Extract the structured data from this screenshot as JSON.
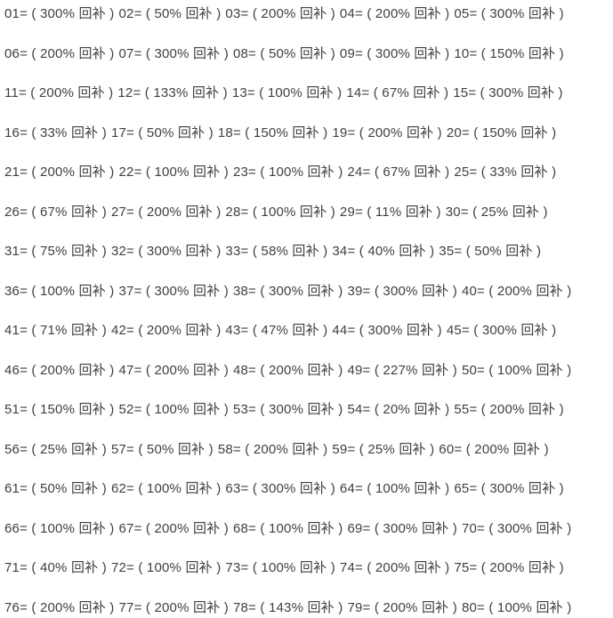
{
  "page": {
    "background": "#ffffff",
    "text_color": "#404040",
    "term": "回补",
    "entries_per_row": 5
  },
  "entries": [
    {
      "id": "01",
      "percent": "300%",
      "text": "01= ( 300% 回补 )"
    },
    {
      "id": "02",
      "percent": "50%",
      "text": "02= ( 50% 回补 )"
    },
    {
      "id": "03",
      "percent": "200%",
      "text": "03= ( 200% 回补 )"
    },
    {
      "id": "04",
      "percent": "200%",
      "text": "04= ( 200% 回补 )"
    },
    {
      "id": "05",
      "percent": "300%",
      "text": "05= ( 300% 回补 )"
    },
    {
      "id": "06",
      "percent": "200%",
      "text": "06= ( 200% 回补 )"
    },
    {
      "id": "07",
      "percent": "300%",
      "text": "07= ( 300% 回补 )"
    },
    {
      "id": "08",
      "percent": "50%",
      "text": "08= ( 50% 回补 )"
    },
    {
      "id": "09",
      "percent": "300%",
      "text": "09= ( 300% 回补 )"
    },
    {
      "id": "10",
      "percent": "150%",
      "text": "10= ( 150% 回补 )"
    },
    {
      "id": "11",
      "percent": "200%",
      "text": "11= ( 200% 回补 )"
    },
    {
      "id": "12",
      "percent": "133%",
      "text": "12= ( 133% 回补 )"
    },
    {
      "id": "13",
      "percent": "100%",
      "text": "13= ( 100% 回补 )"
    },
    {
      "id": "14",
      "percent": "67%",
      "text": "14= ( 67% 回补 )"
    },
    {
      "id": "15",
      "percent": "300%",
      "text": "15= ( 300% 回补 )"
    },
    {
      "id": "16",
      "percent": "33%",
      "text": "16= ( 33% 回补 )"
    },
    {
      "id": "17",
      "percent": "50%",
      "text": "17= ( 50% 回补 )"
    },
    {
      "id": "18",
      "percent": "150%",
      "text": "18= ( 150% 回补 )"
    },
    {
      "id": "19",
      "percent": "200%",
      "text": "19= ( 200% 回补 )"
    },
    {
      "id": "20",
      "percent": "150%",
      "text": "20= ( 150% 回补 )"
    },
    {
      "id": "21",
      "percent": "200%",
      "text": "21= ( 200% 回补 )"
    },
    {
      "id": "22",
      "percent": "100%",
      "text": "22= ( 100% 回补 )"
    },
    {
      "id": "23",
      "percent": "100%",
      "text": "23= ( 100% 回补 )"
    },
    {
      "id": "24",
      "percent": "67%",
      "text": "24= ( 67% 回补 )"
    },
    {
      "id": "25",
      "percent": "33%",
      "text": "25= ( 33% 回补 )"
    },
    {
      "id": "26",
      "percent": "67%",
      "text": "26= ( 67% 回补 )"
    },
    {
      "id": "27",
      "percent": "200%",
      "text": "27= ( 200% 回补 )"
    },
    {
      "id": "28",
      "percent": "100%",
      "text": "28= ( 100% 回补 )"
    },
    {
      "id": "29",
      "percent": "11%",
      "text": "29= ( 11% 回补 )"
    },
    {
      "id": "30",
      "percent": "25%",
      "text": "30= ( 25% 回补 )"
    },
    {
      "id": "31",
      "percent": "75%",
      "text": "31= ( 75% 回补 )"
    },
    {
      "id": "32",
      "percent": "300%",
      "text": "32= ( 300% 回补 )"
    },
    {
      "id": "33",
      "percent": "58%",
      "text": "33= ( 58% 回补 )"
    },
    {
      "id": "34",
      "percent": "40%",
      "text": "34= ( 40% 回补 )"
    },
    {
      "id": "35",
      "percent": "50%",
      "text": "35= ( 50% 回补 )"
    },
    {
      "id": "36",
      "percent": "100%",
      "text": "36= ( 100% 回补 )"
    },
    {
      "id": "37",
      "percent": "300%",
      "text": "37= ( 300% 回补 )"
    },
    {
      "id": "38",
      "percent": "300%",
      "text": "38= ( 300% 回补 )"
    },
    {
      "id": "39",
      "percent": "300%",
      "text": "39= ( 300% 回补 )"
    },
    {
      "id": "40",
      "percent": "200%",
      "text": "40= ( 200% 回补 )"
    },
    {
      "id": "41",
      "percent": "71%",
      "text": "41= ( 71% 回补 )"
    },
    {
      "id": "42",
      "percent": "200%",
      "text": "42= ( 200% 回补 )"
    },
    {
      "id": "43",
      "percent": "47%",
      "text": "43= ( 47% 回补 )"
    },
    {
      "id": "44",
      "percent": "300%",
      "text": "44= ( 300% 回补 )"
    },
    {
      "id": "45",
      "percent": "300%",
      "text": "45= ( 300% 回补 )"
    },
    {
      "id": "46",
      "percent": "200%",
      "text": "46= ( 200% 回补 )"
    },
    {
      "id": "47",
      "percent": "200%",
      "text": "47= ( 200% 回补 )"
    },
    {
      "id": "48",
      "percent": "200%",
      "text": "48= ( 200% 回补 )"
    },
    {
      "id": "49",
      "percent": "227%",
      "text": "49= ( 227% 回补 )"
    },
    {
      "id": "50",
      "percent": "100%",
      "text": "50= ( 100% 回补 )"
    },
    {
      "id": "51",
      "percent": "150%",
      "text": "51= ( 150% 回补 )"
    },
    {
      "id": "52",
      "percent": "100%",
      "text": "52= ( 100% 回补 )"
    },
    {
      "id": "53",
      "percent": "300%",
      "text": "53= ( 300% 回补 )"
    },
    {
      "id": "54",
      "percent": "20%",
      "text": "54= ( 20% 回补 )"
    },
    {
      "id": "55",
      "percent": "200%",
      "text": "55= ( 200% 回补 )"
    },
    {
      "id": "56",
      "percent": "25%",
      "text": "56= ( 25% 回补 )"
    },
    {
      "id": "57",
      "percent": "50%",
      "text": "57= ( 50% 回补 )"
    },
    {
      "id": "58",
      "percent": "200%",
      "text": "58= ( 200% 回补 )"
    },
    {
      "id": "59",
      "percent": "25%",
      "text": "59= ( 25% 回补 )"
    },
    {
      "id": "60",
      "percent": "200%",
      "text": "60= ( 200% 回补 )"
    },
    {
      "id": "61",
      "percent": "50%",
      "text": "61= ( 50% 回补 )"
    },
    {
      "id": "62",
      "percent": "100%",
      "text": "62= ( 100% 回补 )"
    },
    {
      "id": "63",
      "percent": "300%",
      "text": "63= ( 300% 回补 )"
    },
    {
      "id": "64",
      "percent": "100%",
      "text": "64= ( 100% 回补 )"
    },
    {
      "id": "65",
      "percent": "300%",
      "text": "65= ( 300% 回补 )"
    },
    {
      "id": "66",
      "percent": "100%",
      "text": "66= ( 100% 回补 )"
    },
    {
      "id": "67",
      "percent": "200%",
      "text": "67= ( 200% 回补 )"
    },
    {
      "id": "68",
      "percent": "100%",
      "text": "68= ( 100% 回补 )"
    },
    {
      "id": "69",
      "percent": "300%",
      "text": "69= ( 300% 回补 )"
    },
    {
      "id": "70",
      "percent": "300%",
      "text": "70= ( 300% 回补 )"
    },
    {
      "id": "71",
      "percent": "40%",
      "text": "71= ( 40% 回补 )"
    },
    {
      "id": "72",
      "percent": "100%",
      "text": "72= ( 100% 回补 )"
    },
    {
      "id": "73",
      "percent": "100%",
      "text": "73= ( 100% 回补 )"
    },
    {
      "id": "74",
      "percent": "200%",
      "text": "74= ( 200% 回补 )"
    },
    {
      "id": "75",
      "percent": "200%",
      "text": "75= ( 200% 回补 )"
    },
    {
      "id": "76",
      "percent": "200%",
      "text": "76= ( 200% 回补 )"
    },
    {
      "id": "77",
      "percent": "200%",
      "text": "77= ( 200% 回补 )"
    },
    {
      "id": "78",
      "percent": "143%",
      "text": "78= ( 143% 回补 )"
    },
    {
      "id": "79",
      "percent": "200%",
      "text": "79= ( 200% 回补 )"
    },
    {
      "id": "80",
      "percent": "100%",
      "text": "80= ( 100% 回补 )"
    }
  ]
}
